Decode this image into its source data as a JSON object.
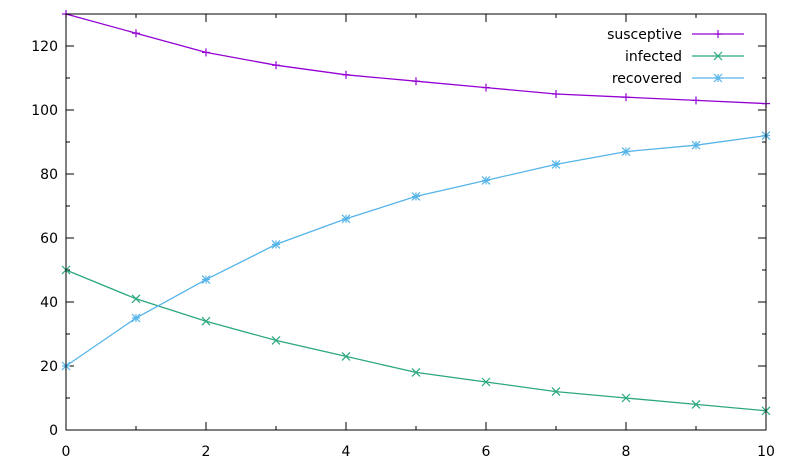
{
  "chart_data": {
    "type": "line",
    "title": "",
    "xlabel": "",
    "ylabel": "",
    "xlim": [
      0,
      10
    ],
    "ylim": [
      0,
      130
    ],
    "xticks": [
      0,
      2,
      4,
      6,
      8,
      10
    ],
    "yticks": [
      0,
      20,
      40,
      60,
      80,
      100,
      120
    ],
    "grid": false,
    "legend_position": "top-right",
    "x": [
      0,
      1,
      2,
      3,
      4,
      5,
      6,
      7,
      8,
      9,
      10
    ],
    "series": [
      {
        "name": "susceptive",
        "marker": "plus",
        "color": "#9400d3",
        "values": [
          130,
          124,
          118,
          114,
          111,
          109,
          107,
          105,
          104,
          103,
          102
        ]
      },
      {
        "name": "infected",
        "marker": "cross",
        "color": "#2ca87f",
        "values": [
          50,
          41,
          34,
          28,
          23,
          18,
          15,
          12,
          10,
          8,
          6
        ]
      },
      {
        "name": "recovered",
        "marker": "star",
        "color": "#56b4e9",
        "values": [
          20,
          35,
          47,
          58,
          66,
          73,
          78,
          83,
          87,
          89,
          92
        ]
      }
    ]
  }
}
